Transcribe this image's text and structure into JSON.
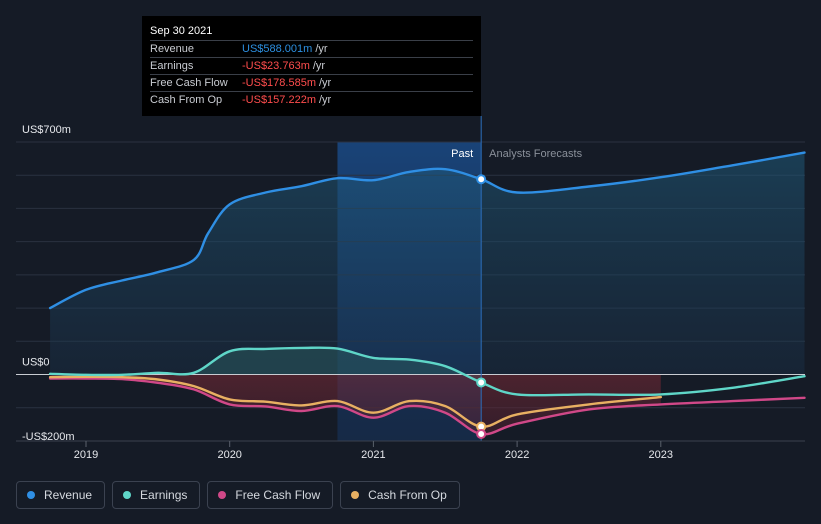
{
  "tooltip": {
    "date": "Sep 30 2021",
    "rows": [
      {
        "label": "Revenue",
        "value": "US$588.001m",
        "unit": "/yr"
      },
      {
        "label": "Earnings",
        "value": "-US$23.763m",
        "unit": "/yr"
      },
      {
        "label": "Free Cash Flow",
        "value": "-US$178.585m",
        "unit": "/yr"
      },
      {
        "label": "Cash From Op",
        "value": "-US$157.222m",
        "unit": "/yr"
      }
    ]
  },
  "legend": [
    {
      "label": "Revenue",
      "color": "#2f8fe4"
    },
    {
      "label": "Earnings",
      "color": "#5fd6c8"
    },
    {
      "label": "Free Cash Flow",
      "color": "#d04888"
    },
    {
      "label": "Cash From Op",
      "color": "#e8b062"
    }
  ],
  "chart_data": {
    "type": "line",
    "y_tick_labels": [
      "US$700m",
      "US$0",
      "-US$200m"
    ],
    "ylim": [
      -200,
      700
    ],
    "x_ticks": [
      2019,
      2020,
      2021,
      2022,
      2023
    ],
    "x_tick_labels": [
      "2019",
      "2020",
      "2021",
      "2022",
      "2023"
    ],
    "xlim": [
      2018.75,
      2024.0
    ],
    "past_label": "Past",
    "forecast_label": "Analysts Forecasts",
    "past_end": 2021.75,
    "highlight_start": 2020.75,
    "grid": true,
    "legend_placement": "bottom-left",
    "series": [
      {
        "name": "Revenue",
        "color": "#2f8fe4",
        "points": [
          [
            2018.75,
            200
          ],
          [
            2019.0,
            255
          ],
          [
            2019.25,
            283
          ],
          [
            2019.5,
            308
          ],
          [
            2019.75,
            345
          ],
          [
            2019.85,
            425
          ],
          [
            2020.0,
            512
          ],
          [
            2020.25,
            548
          ],
          [
            2020.5,
            567
          ],
          [
            2020.75,
            591
          ],
          [
            2021.0,
            585
          ],
          [
            2021.25,
            610
          ],
          [
            2021.5,
            618
          ],
          [
            2021.75,
            588
          ],
          [
            2022.0,
            548
          ],
          [
            2022.5,
            566
          ],
          [
            2023.0,
            594
          ],
          [
            2023.5,
            630
          ],
          [
            2024.0,
            668
          ]
        ],
        "marker": [
          2021.75,
          588
        ]
      },
      {
        "name": "Earnings",
        "color": "#5fd6c8",
        "points": [
          [
            2018.75,
            2
          ],
          [
            2019.0,
            -1
          ],
          [
            2019.25,
            -1
          ],
          [
            2019.5,
            5
          ],
          [
            2019.75,
            5
          ],
          [
            2020.0,
            70
          ],
          [
            2020.25,
            77
          ],
          [
            2020.5,
            80
          ],
          [
            2020.75,
            78
          ],
          [
            2021.0,
            50
          ],
          [
            2021.25,
            45
          ],
          [
            2021.5,
            25
          ],
          [
            2021.75,
            -24
          ],
          [
            2022.0,
            -60
          ],
          [
            2022.5,
            -60
          ],
          [
            2023.0,
            -60
          ],
          [
            2023.5,
            -40
          ],
          [
            2024.0,
            -5
          ]
        ],
        "marker": [
          2021.75,
          -24
        ]
      },
      {
        "name": "Free Cash Flow",
        "color": "#d04888",
        "points": [
          [
            2018.75,
            -12
          ],
          [
            2019.0,
            -12
          ],
          [
            2019.25,
            -14
          ],
          [
            2019.5,
            -25
          ],
          [
            2019.75,
            -45
          ],
          [
            2020.0,
            -90
          ],
          [
            2020.25,
            -96
          ],
          [
            2020.5,
            -110
          ],
          [
            2020.75,
            -95
          ],
          [
            2021.0,
            -130
          ],
          [
            2021.25,
            -95
          ],
          [
            2021.5,
            -115
          ],
          [
            2021.75,
            -179
          ],
          [
            2022.0,
            -148
          ],
          [
            2022.5,
            -105
          ],
          [
            2023.0,
            -90
          ],
          [
            2023.5,
            -80
          ],
          [
            2024.0,
            -70
          ]
        ],
        "marker": [
          2021.75,
          -179
        ]
      },
      {
        "name": "Cash From Op",
        "color": "#e8b062",
        "points": [
          [
            2018.75,
            -8
          ],
          [
            2019.0,
            -7
          ],
          [
            2019.25,
            -8
          ],
          [
            2019.5,
            -15
          ],
          [
            2019.75,
            -35
          ],
          [
            2020.0,
            -75
          ],
          [
            2020.25,
            -82
          ],
          [
            2020.5,
            -93
          ],
          [
            2020.75,
            -80
          ],
          [
            2021.0,
            -115
          ],
          [
            2021.25,
            -80
          ],
          [
            2021.5,
            -95
          ],
          [
            2021.75,
            -157
          ],
          [
            2022.0,
            -120
          ],
          [
            2022.5,
            -90
          ],
          [
            2023.0,
            -68
          ]
        ],
        "marker": [
          2021.75,
          -157
        ]
      }
    ]
  }
}
